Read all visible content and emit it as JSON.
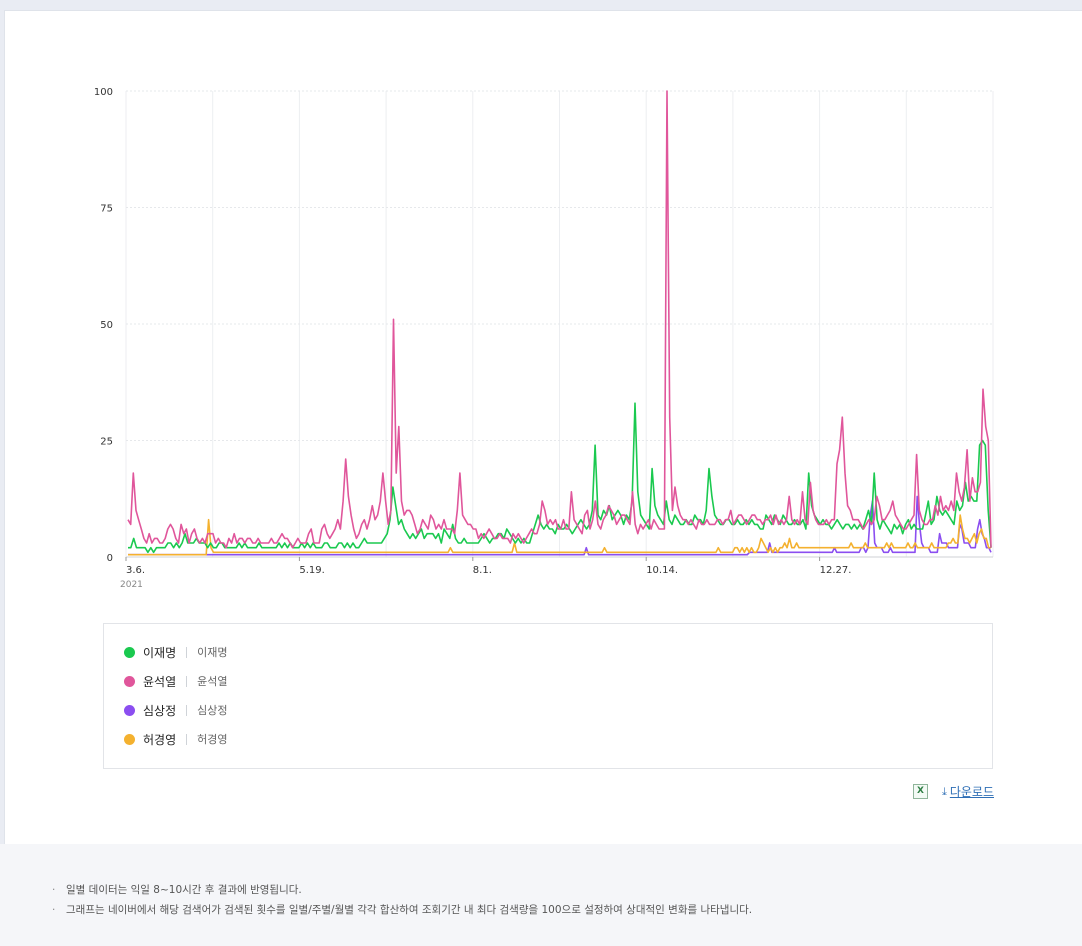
{
  "chart_data": {
    "type": "line",
    "ylim": [
      0,
      100
    ],
    "y_ticks": [
      "0",
      "25",
      "50",
      "75",
      "100"
    ],
    "x_tick_labels": [
      "3.6.",
      "5.19.",
      "8.1.",
      "10.14.",
      "12.27."
    ],
    "x_year_label": "2021",
    "grid": true,
    "series": [
      {
        "name": "이재명",
        "sub": "이재명",
        "color": "#1ac94f",
        "values": [
          2,
          2,
          4,
          2,
          2,
          2,
          2,
          1,
          2,
          1,
          2,
          2,
          2,
          2,
          3,
          3,
          2,
          3,
          2,
          3,
          5,
          3,
          3,
          3,
          4,
          3,
          3,
          3,
          2,
          3,
          2,
          2,
          3,
          3,
          2,
          2,
          2,
          2,
          2,
          3,
          2,
          3,
          2,
          2,
          2,
          2,
          3,
          2,
          2,
          2,
          2,
          2,
          2,
          3,
          2,
          3,
          2,
          3,
          2,
          2,
          2,
          3,
          2,
          3,
          2,
          3,
          2,
          2,
          2,
          3,
          3,
          2,
          2,
          2,
          3,
          3,
          2,
          3,
          2,
          3,
          2,
          2,
          3,
          4,
          3,
          3,
          3,
          3,
          3,
          3,
          4,
          5,
          8,
          15,
          11,
          7,
          8,
          6,
          5,
          4,
          5,
          4,
          5,
          6,
          4,
          5,
          5,
          5,
          4,
          5,
          3,
          6,
          5,
          4,
          7,
          4,
          3,
          3,
          4,
          3,
          3,
          3,
          3,
          3,
          4,
          5,
          4,
          3,
          4,
          4,
          5,
          5,
          4,
          6,
          5,
          4,
          3,
          4,
          3,
          4,
          3,
          3,
          5,
          7,
          9,
          7,
          6,
          7,
          6,
          6,
          5,
          7,
          6,
          6,
          7,
          6,
          5,
          6,
          7,
          8,
          7,
          6,
          7,
          10,
          24,
          9,
          8,
          10,
          9,
          11,
          8,
          9,
          10,
          9,
          7,
          9,
          8,
          12,
          33,
          14,
          9,
          8,
          7,
          6,
          19,
          11,
          9,
          8,
          7,
          12,
          8,
          7,
          9,
          8,
          7,
          7,
          8,
          7,
          7,
          9,
          8,
          8,
          7,
          10,
          19,
          13,
          9,
          8,
          7,
          7,
          8,
          8,
          7,
          7,
          8,
          7,
          7,
          8,
          7,
          8,
          7,
          7,
          6,
          6,
          9,
          8,
          7,
          9,
          8,
          7,
          9,
          8,
          7,
          7,
          8,
          7,
          7,
          8,
          6,
          18,
          11,
          9,
          8,
          7,
          8,
          7,
          7,
          6,
          7,
          8,
          7,
          6,
          7,
          7,
          6,
          7,
          6,
          7,
          6,
          8,
          10,
          7,
          18,
          8,
          6,
          8,
          7,
          6,
          5,
          7,
          6,
          7,
          5,
          7,
          8,
          6,
          7,
          6,
          6,
          6,
          9,
          12,
          7,
          8,
          13,
          10,
          9,
          10,
          9,
          8,
          7,
          12,
          10,
          11,
          16,
          12,
          13,
          12,
          12,
          24,
          25,
          24,
          10,
          2
        ]
      },
      {
        "name": "윤석열",
        "sub": "윤석열",
        "color": "#e0569b",
        "values": [
          8,
          7,
          18,
          10,
          8,
          6,
          4,
          3,
          5,
          3,
          4,
          4,
          3,
          3,
          4,
          6,
          7,
          6,
          4,
          3,
          7,
          5,
          6,
          3,
          5,
          6,
          4,
          3,
          4,
          3,
          5,
          5,
          5,
          3,
          4,
          3,
          3,
          2,
          4,
          3,
          5,
          3,
          4,
          4,
          3,
          4,
          4,
          3,
          3,
          4,
          3,
          3,
          3,
          3,
          4,
          3,
          3,
          4,
          5,
          4,
          4,
          3,
          2,
          3,
          4,
          3,
          3,
          3,
          5,
          6,
          3,
          3,
          3,
          6,
          7,
          5,
          4,
          5,
          6,
          8,
          6,
          12,
          21,
          13,
          9,
          6,
          4,
          5,
          7,
          8,
          6,
          8,
          11,
          8,
          9,
          12,
          18,
          12,
          7,
          10,
          51,
          18,
          28,
          12,
          9,
          10,
          10,
          9,
          7,
          5,
          6,
          8,
          7,
          6,
          9,
          8,
          6,
          7,
          6,
          8,
          6,
          6,
          6,
          5,
          10,
          18,
          9,
          8,
          7,
          7,
          6,
          6,
          4,
          5,
          4,
          5,
          6,
          5,
          4,
          4,
          5,
          4,
          4,
          4,
          3,
          5,
          4,
          5,
          4,
          3,
          4,
          5,
          6,
          5,
          5,
          7,
          12,
          10,
          7,
          8,
          7,
          8,
          6,
          6,
          8,
          6,
          6,
          14,
          8,
          7,
          6,
          5,
          9,
          10,
          6,
          8,
          12,
          7,
          6,
          8,
          9,
          11,
          10,
          9,
          7,
          8,
          9,
          9,
          8,
          7,
          14,
          7,
          5,
          7,
          6,
          7,
          8,
          6,
          8,
          7,
          6,
          6,
          6,
          100,
          30,
          10,
          15,
          11,
          9,
          8,
          8,
          7,
          8,
          7,
          6,
          8,
          7,
          7,
          8,
          7,
          7,
          7,
          8,
          8,
          7,
          8,
          8,
          10,
          7,
          8,
          9,
          9,
          8,
          7,
          8,
          9,
          9,
          8,
          8,
          7,
          8,
          8,
          9,
          7,
          9,
          7,
          8,
          7,
          8,
          13,
          8,
          7,
          8,
          7,
          14,
          8,
          7,
          16,
          10,
          8,
          7,
          7,
          7,
          8,
          7,
          8,
          8,
          20,
          23,
          30,
          18,
          11,
          10,
          8,
          8,
          8,
          7,
          6,
          7,
          8,
          7,
          8,
          13,
          11,
          8,
          8,
          9,
          10,
          12,
          9,
          8,
          7,
          6,
          6,
          7,
          8,
          9,
          22,
          10,
          8,
          7,
          7,
          8,
          8,
          11,
          9,
          13,
          10,
          11,
          10,
          12,
          10,
          18,
          14,
          12,
          15,
          23,
          12,
          17,
          14,
          14,
          16,
          36,
          28,
          25,
          2
        ]
      },
      {
        "name": "심상정",
        "sub": "심상정",
        "color": "#8b4ef0",
        "values": [
          0.5,
          0.5,
          0.5,
          0.5,
          0.5,
          0.5,
          0.5,
          0.5,
          0.5,
          0.5,
          0.5,
          0.5,
          0.5,
          0.5,
          0.5,
          0.5,
          0.5,
          0.5,
          0.5,
          0.5,
          0.5,
          0.5,
          0.5,
          0.5,
          0.5,
          0.5,
          0.5,
          0.5,
          0.5,
          0.5,
          0.5,
          0.5,
          0.5,
          0.5,
          0.5,
          0.5,
          0.5,
          0.5,
          0.5,
          0.5,
          0.5,
          0.5,
          0.5,
          0.5,
          0.5,
          0.5,
          0.5,
          0.5,
          0.5,
          0.5,
          0.5,
          0.5,
          0.5,
          0.5,
          0.5,
          0.5,
          0.5,
          0.5,
          0.5,
          0.5,
          0.5,
          0.5,
          0.5,
          0.5,
          0.5,
          0.5,
          0.5,
          0.5,
          0.5,
          0.5,
          0.5,
          0.5,
          0.5,
          0.5,
          0.5,
          0.5,
          0.5,
          0.5,
          0.5,
          0.5,
          0.5,
          0.5,
          0.5,
          0.5,
          0.5,
          0.5,
          0.5,
          0.5,
          0.5,
          0.5,
          0.5,
          0.5,
          0.5,
          0.5,
          0.5,
          0.5,
          0.5,
          0.5,
          0.5,
          0.5,
          0.5,
          0.5,
          0.5,
          0.5,
          0.5,
          0.5,
          0.5,
          0.5,
          0.5,
          0.5,
          0.5,
          0.5,
          0.5,
          0.5,
          0.5,
          0.5,
          0.5,
          0.5,
          0.5,
          0.5,
          0.5,
          0.5,
          0.5,
          0.5,
          0.5,
          0.5,
          0.5,
          0.5,
          0.5,
          0.5,
          0.5,
          0.5,
          0.5,
          0.5,
          0.5,
          0.5,
          0.5,
          0.5,
          0.5,
          0.5,
          0.5,
          0.5,
          0.5,
          0.5,
          0.5,
          0.5,
          0.5,
          0.5,
          0.5,
          0.5,
          0.5,
          0.5,
          0.5,
          0.5,
          0.5,
          0.5,
          0.5,
          0.5,
          0.5,
          0.5,
          0.5,
          0.5,
          0.5,
          0.5,
          0.5,
          0.5,
          0.5,
          0.5,
          0.5,
          0.5,
          0.5,
          0.5,
          0.5,
          0.5,
          0.5,
          0.5,
          0.5,
          0.5,
          0.5,
          0.5,
          0.5,
          0.5,
          0.5,
          0.5,
          0.5,
          0.5,
          0.5,
          0.5,
          0.5,
          0.5,
          0.5,
          0.5,
          0.5,
          0.5,
          0.5,
          0.5,
          0.5,
          0.5,
          0.5,
          0.5,
          0.5,
          0.5,
          0.5,
          0.5,
          0.5,
          2,
          0.5,
          0.5,
          0.5,
          0.5,
          0.5,
          0.5,
          0.5,
          0.5,
          0.5,
          0.5,
          0.5,
          0.5,
          0.5,
          0.5,
          0.5,
          0.5,
          0.5,
          0.5,
          0.5,
          0.5,
          0.5,
          0.5,
          0.5,
          0.5,
          0.5,
          0.5,
          0.5,
          0.5,
          0.5,
          0.5,
          0.5,
          0.5,
          0.5,
          0.5,
          0.5,
          0.5,
          0.5,
          0.5,
          0.5,
          0.5,
          0.5,
          0.5,
          0.5,
          0.5,
          0.5,
          0.5,
          0.5,
          0.5,
          0.5,
          0.5,
          0.5,
          0.5,
          0.5,
          0.5,
          0.5,
          0.5,
          0.5,
          0.5,
          0.5,
          0.5,
          0.5,
          0.5,
          0.5,
          0.5,
          0.5,
          0.5,
          0.5,
          0.5,
          0.5,
          0.5,
          0.5,
          0.5,
          1,
          1,
          1,
          1,
          1,
          1,
          1,
          1,
          1,
          3,
          1,
          1,
          1,
          1,
          1,
          1,
          1,
          1,
          1,
          1,
          1,
          1,
          1,
          1,
          1,
          1,
          1,
          1,
          1,
          1,
          1,
          1,
          1,
          1,
          1,
          1,
          1,
          1,
          2,
          1,
          1,
          1,
          1,
          1,
          1,
          1,
          1,
          1,
          1,
          1,
          2,
          2,
          1,
          2,
          9,
          12,
          3,
          2,
          2,
          2,
          1,
          1,
          1,
          2,
          1,
          1,
          1,
          1,
          1,
          1,
          1,
          1,
          1,
          1,
          1,
          13,
          7,
          3,
          2,
          2,
          2,
          1,
          1,
          1,
          1,
          5,
          3,
          3,
          3,
          2,
          2,
          2,
          2,
          2,
          7,
          6,
          3,
          3,
          3,
          2,
          2,
          2,
          6,
          8,
          5,
          4,
          2,
          2,
          1
        ]
      },
      {
        "name": "허경영",
        "sub": "허경영",
        "color": "#f4b12f",
        "values": [
          0.5,
          0.5,
          0.5,
          0.5,
          0.5,
          0.5,
          0.5,
          0.5,
          0.5,
          0.5,
          0.5,
          0.5,
          0.5,
          0.5,
          0.5,
          0.5,
          0.5,
          0.5,
          0.5,
          0.5,
          0.5,
          0.5,
          0.5,
          0.5,
          0.5,
          0.5,
          0.5,
          0.5,
          0.5,
          0.5,
          0.5,
          0.5,
          0.5,
          0.5,
          8,
          2,
          1,
          1,
          1,
          1,
          1,
          1,
          1,
          1,
          1,
          1,
          1,
          1,
          1,
          1,
          1,
          1,
          1,
          1,
          1,
          1,
          1,
          1,
          1,
          1,
          1,
          1,
          1,
          1,
          1,
          1,
          1,
          1,
          1,
          1,
          1,
          1,
          1,
          1,
          1,
          1,
          1,
          1,
          1,
          1,
          1,
          1,
          1,
          1,
          1,
          1,
          1,
          1,
          1,
          1,
          1,
          1,
          1,
          1,
          1,
          1,
          1,
          1,
          1,
          1,
          1,
          1,
          1,
          1,
          1,
          1,
          1,
          1,
          1,
          1,
          1,
          1,
          1,
          1,
          1,
          1,
          1,
          1,
          1,
          1,
          1,
          1,
          1,
          1,
          1,
          1,
          1,
          1,
          1,
          1,
          1,
          1,
          1,
          1,
          1,
          1,
          2,
          1,
          1,
          1,
          1,
          1,
          1,
          1,
          1,
          1,
          1,
          1,
          1,
          1,
          1,
          1,
          1,
          1,
          1,
          1,
          1,
          1,
          1,
          1,
          1,
          1,
          1,
          3,
          1,
          1,
          1,
          1,
          1,
          1,
          1,
          1,
          1,
          1,
          1,
          1,
          1,
          1,
          1,
          1,
          1,
          1,
          1,
          1,
          1,
          1,
          1,
          1,
          1,
          1,
          1,
          1,
          1,
          1,
          1,
          1,
          1,
          1,
          1,
          1,
          1,
          2,
          1,
          1,
          1,
          1,
          1,
          1,
          1,
          1,
          1,
          1,
          1,
          1,
          1,
          1,
          1,
          1,
          1,
          1,
          1,
          1,
          1,
          1,
          1,
          1,
          1,
          1,
          1,
          1,
          1,
          1,
          1,
          1,
          1,
          1,
          1,
          1,
          1,
          1,
          1,
          1,
          1,
          1,
          1,
          1,
          1,
          1,
          1,
          2,
          1,
          1,
          1,
          1,
          1,
          1,
          2,
          2,
          1,
          2,
          1,
          2,
          1,
          2,
          1,
          1,
          2,
          4,
          3,
          2,
          1,
          2,
          1,
          2,
          1,
          2,
          2,
          3,
          2,
          4,
          2,
          2,
          3,
          2,
          2,
          2,
          2,
          2,
          2,
          2,
          2,
          2,
          2,
          2,
          2,
          2,
          2,
          2,
          2,
          2,
          2,
          2,
          2,
          2,
          2,
          3,
          2,
          2,
          2,
          2,
          2,
          3,
          2,
          2,
          2,
          2,
          2,
          2,
          2,
          2,
          3,
          2,
          3,
          2,
          2,
          2,
          2,
          2,
          2,
          3,
          2,
          2,
          3,
          2,
          2,
          2,
          2,
          2,
          2,
          3,
          2,
          2,
          2,
          2,
          2,
          2,
          3,
          3,
          4,
          3,
          3,
          9,
          6,
          4,
          4,
          3,
          4,
          5,
          3,
          5,
          6,
          4,
          4,
          2,
          2
        ]
      }
    ]
  },
  "download": {
    "label": "다운로드",
    "excel_icon": "excel-icon"
  },
  "notes": [
    "일별 데이터는 익일 8~10시간 후 결과에 반영됩니다.",
    "그래프는 네이버에서 해당 검색어가 검색된 횟수를 일별/주별/월별 각각 합산하여 조회기간 내 최다 검색량을 100으로 설정하여 상대적인 변화를 나타냅니다."
  ]
}
